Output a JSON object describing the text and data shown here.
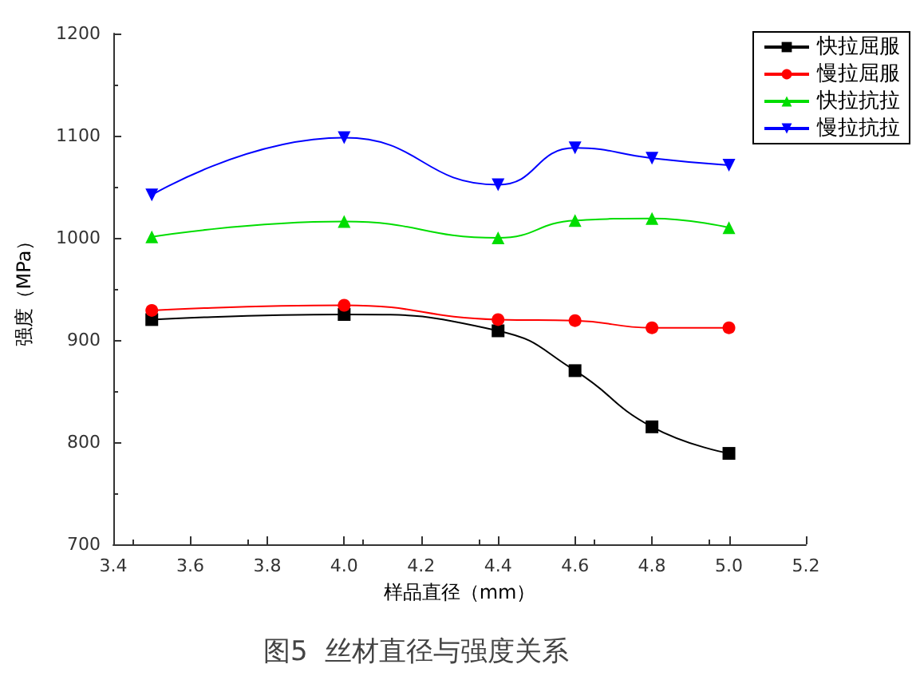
{
  "chart_data": {
    "type": "line",
    "title": "图5  丝材直径与强度关系",
    "xlabel": "样品直径（mm）",
    "ylabel": "强度（MPa）",
    "x": [
      3.5,
      4.0,
      4.4,
      4.6,
      4.8,
      5.0
    ],
    "series": [
      {
        "name": "快拉屈服",
        "color": "#000000",
        "marker": "square",
        "values": [
          920,
          925,
          909,
          870,
          815,
          789
        ]
      },
      {
        "name": "慢拉屈服",
        "color": "#ff0000",
        "marker": "circle",
        "values": [
          929,
          934,
          920,
          919,
          912,
          912
        ]
      },
      {
        "name": "快拉抗拉",
        "color": "#00dd00",
        "marker": "triangle",
        "values": [
          1001,
          1016,
          1000,
          1017,
          1019,
          1010
        ]
      },
      {
        "name": "慢拉抗拉",
        "color": "#0000ff",
        "marker": "triangle-down",
        "values": [
          1042,
          1098,
          1052,
          1088,
          1078,
          1071
        ]
      }
    ],
    "xlim": [
      3.4,
      5.2
    ],
    "xticks": [
      3.4,
      3.6,
      3.8,
      {
        "value": 4,
        "label": "4.0"
      },
      4.2,
      4.4,
      4.6,
      4.8,
      {
        "value": 5,
        "label": "5.0"
      },
      5.2
    ],
    "ylim": [
      700,
      1200
    ],
    "yticks": [
      700,
      800,
      900,
      1000,
      1100,
      1200
    ],
    "grid": false,
    "legend": "top right",
    "line_style": "solid"
  }
}
